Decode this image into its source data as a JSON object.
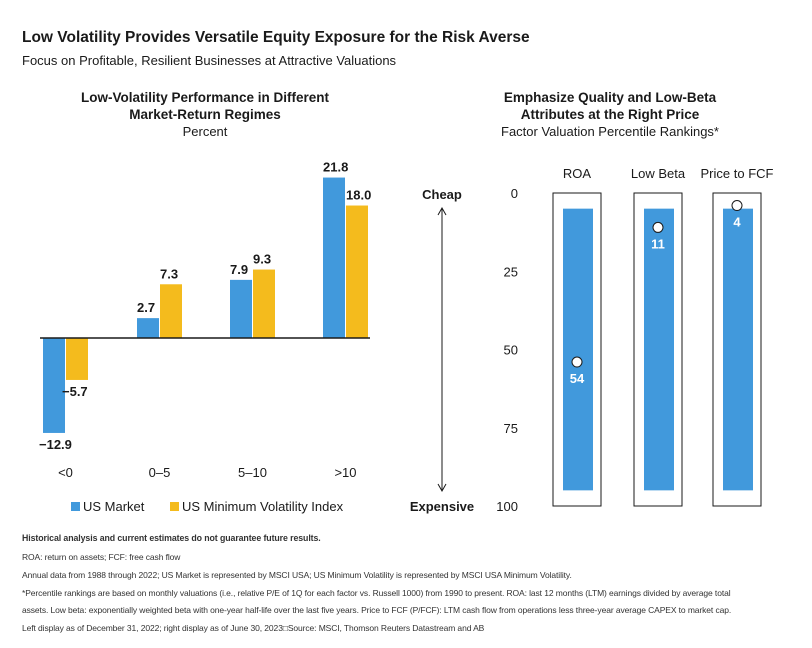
{
  "header": {
    "title": "Low Volatility Provides Versatile Equity Exposure for the Risk Averse",
    "subtitle": "Focus on Profitable, Resilient Businesses at Attractive Valuations"
  },
  "colors": {
    "us_market": "#4199dc",
    "min_vol": "#f4bb1d",
    "axis": "#1a1a1a"
  },
  "chart_data": [
    {
      "type": "bar",
      "title": "Low-Volatility Performance in Different Market-Return Regimes",
      "title_line1": "Low-Volatility Performance in Different",
      "title_line2": "Market-Return Regimes",
      "subtitle": "Percent",
      "categories": [
        "<0",
        "0–5",
        "5–10",
        ">10"
      ],
      "series": [
        {
          "name": "US Market",
          "values": [
            -12.9,
            2.7,
            7.9,
            21.8
          ],
          "labels": [
            "−12.9",
            "2.7",
            "7.9",
            "21.8"
          ]
        },
        {
          "name": "US Minimum Volatility Index",
          "values": [
            -5.7,
            7.3,
            9.3,
            18.0
          ],
          "labels": [
            "−5.7",
            "7.3",
            "9.3",
            "18.0"
          ]
        }
      ],
      "legend": "bottom"
    },
    {
      "type": "bar",
      "title": "Emphasize Quality and Low-Beta Attributes at the Right Price",
      "title_line1": "Emphasize Quality and Low-Beta",
      "title_line2": "Attributes at the Right Price",
      "subtitle": "Factor Valuation Percentile Rankings*",
      "categories": [
        "ROA",
        "Low Beta",
        "Price to FCF"
      ],
      "values": [
        54,
        11,
        4
      ],
      "value_labels": [
        "54",
        "11",
        "4"
      ],
      "bar_range": [
        5,
        95
      ],
      "ylim": [
        0,
        100
      ],
      "y_inverted": true,
      "yticks": [
        "0",
        "25",
        "50",
        "75",
        "100"
      ],
      "ytick_values": [
        0,
        25,
        50,
        75,
        100
      ],
      "axis_top_label": "Cheap",
      "axis_bottom_label": "Expensive"
    }
  ],
  "footnotes": {
    "disclaimer": "Historical analysis and current estimates do not guarantee future results.",
    "abbrev": "ROA: return on assets; FCF: free cash flow",
    "data_note": "Annual data from 1988 through 2022; US Market is represented by MSCI USA; US Minimum Volatility is represented by MSCI USA Minimum Volatility.",
    "pct_note_1": "*Percentile rankings are based on monthly valuations (i.e., relative P/E of 1Q for each factor vs. Russell 1000) from 1990 to present. ROA: last 12 months (LTM) earnings divided by average total",
    "pct_note_2": "assets. Low beta: exponentially weighted beta with one-year half-life over the last five years. Price to FCF (P/FCF): LTM cash flow from operations less three-year average CAPEX to market cap.",
    "source": "Left display as of December 31, 2022; right display as of June 30, 2023□Source: MSCI, Thomson Reuters Datastream and AB"
  }
}
